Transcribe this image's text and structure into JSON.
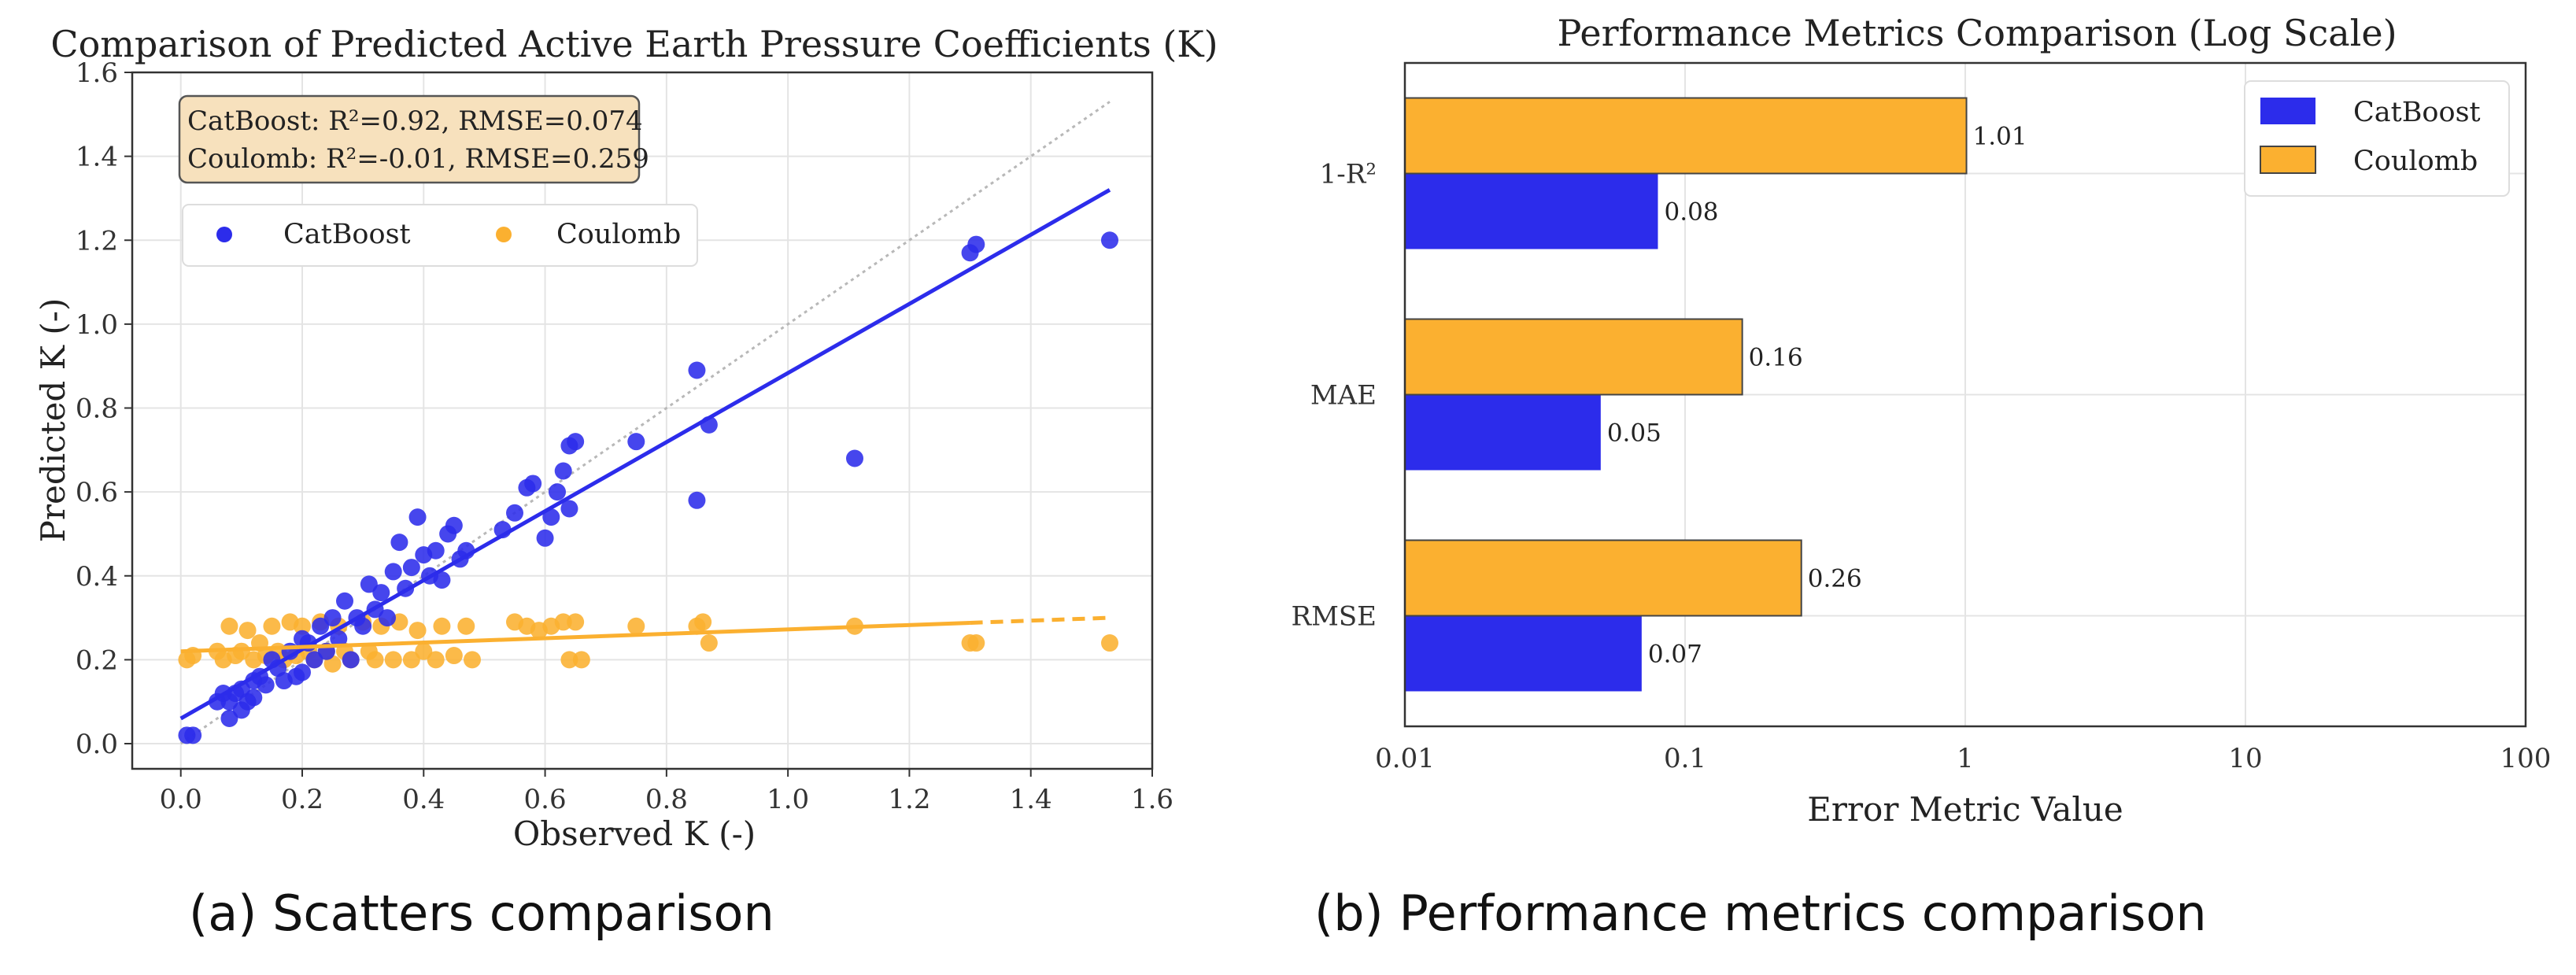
{
  "colors": {
    "catboost": "#2c2ceb",
    "coulomb": "#fbb030",
    "ideal_line": "#b8b8b8",
    "stat_box_fill": "#f7e1bd",
    "bar_edge": "#444444"
  },
  "captions": {
    "a": "(a) Scatters comparison",
    "b": "(b) Performance metrics comparison"
  },
  "chart_data": [
    {
      "type": "scatter",
      "title": "Comparison of Predicted Active Earth Pressure Coefficients (K)",
      "xlabel": "Observed K (-)",
      "ylabel": "Predicted K (-)",
      "xlim": [
        -0.08,
        1.6
      ],
      "ylim": [
        -0.06,
        1.6
      ],
      "xticks": [
        "0.0",
        "0.2",
        "0.4",
        "0.6",
        "0.8",
        "1.0",
        "1.2",
        "1.4",
        "1.6"
      ],
      "yticks": [
        "0.0",
        "0.2",
        "0.4",
        "0.6",
        "0.8",
        "1.0",
        "1.2",
        "1.4",
        "1.6"
      ],
      "grid": true,
      "legend": {
        "position": "upper-left",
        "entries": [
          "CatBoost",
          "Coulomb"
        ]
      },
      "annotation_lines": [
        "CatBoost: R²=0.92, RMSE=0.074",
        "Coulomb: R²=-0.01, RMSE=0.259"
      ],
      "ideal_line": {
        "x": [
          0.0,
          1.53
        ],
        "y": [
          0.0,
          1.53
        ]
      },
      "series": [
        {
          "name": "CatBoost",
          "fit": {
            "x": [
              0.0,
              1.53
            ],
            "y": [
              0.06,
              1.32
            ]
          },
          "points": [
            [
              0.01,
              0.02
            ],
            [
              0.02,
              0.02
            ],
            [
              0.06,
              0.1
            ],
            [
              0.07,
              0.12
            ],
            [
              0.08,
              0.06
            ],
            [
              0.08,
              0.1
            ],
            [
              0.09,
              0.12
            ],
            [
              0.1,
              0.08
            ],
            [
              0.1,
              0.13
            ],
            [
              0.11,
              0.1
            ],
            [
              0.12,
              0.15
            ],
            [
              0.12,
              0.11
            ],
            [
              0.13,
              0.16
            ],
            [
              0.14,
              0.14
            ],
            [
              0.15,
              0.2
            ],
            [
              0.16,
              0.18
            ],
            [
              0.17,
              0.15
            ],
            [
              0.18,
              0.22
            ],
            [
              0.19,
              0.16
            ],
            [
              0.2,
              0.25
            ],
            [
              0.2,
              0.17
            ],
            [
              0.21,
              0.24
            ],
            [
              0.22,
              0.2
            ],
            [
              0.23,
              0.28
            ],
            [
              0.24,
              0.22
            ],
            [
              0.25,
              0.3
            ],
            [
              0.26,
              0.25
            ],
            [
              0.27,
              0.34
            ],
            [
              0.28,
              0.2
            ],
            [
              0.29,
              0.3
            ],
            [
              0.3,
              0.28
            ],
            [
              0.31,
              0.38
            ],
            [
              0.32,
              0.32
            ],
            [
              0.33,
              0.36
            ],
            [
              0.34,
              0.3
            ],
            [
              0.35,
              0.41
            ],
            [
              0.36,
              0.48
            ],
            [
              0.37,
              0.37
            ],
            [
              0.38,
              0.42
            ],
            [
              0.39,
              0.54
            ],
            [
              0.4,
              0.45
            ],
            [
              0.41,
              0.4
            ],
            [
              0.42,
              0.46
            ],
            [
              0.43,
              0.39
            ],
            [
              0.44,
              0.5
            ],
            [
              0.45,
              0.52
            ],
            [
              0.46,
              0.44
            ],
            [
              0.47,
              0.46
            ],
            [
              0.53,
              0.51
            ],
            [
              0.55,
              0.55
            ],
            [
              0.57,
              0.61
            ],
            [
              0.58,
              0.62
            ],
            [
              0.6,
              0.49
            ],
            [
              0.61,
              0.54
            ],
            [
              0.62,
              0.6
            ],
            [
              0.63,
              0.65
            ],
            [
              0.64,
              0.71
            ],
            [
              0.65,
              0.72
            ],
            [
              0.64,
              0.56
            ],
            [
              0.75,
              0.72
            ],
            [
              0.85,
              0.89
            ],
            [
              0.85,
              0.58
            ],
            [
              0.87,
              0.76
            ],
            [
              1.11,
              0.68
            ],
            [
              1.3,
              1.17
            ],
            [
              1.31,
              1.19
            ],
            [
              1.53,
              1.2
            ]
          ]
        },
        {
          "name": "Coulomb",
          "fit": {
            "x": [
              0.0,
              1.53
            ],
            "y": [
              0.22,
              0.3
            ]
          },
          "points": [
            [
              0.01,
              0.2
            ],
            [
              0.02,
              0.21
            ],
            [
              0.06,
              0.22
            ],
            [
              0.07,
              0.2
            ],
            [
              0.08,
              0.28
            ],
            [
              0.09,
              0.21
            ],
            [
              0.1,
              0.22
            ],
            [
              0.11,
              0.27
            ],
            [
              0.12,
              0.2
            ],
            [
              0.13,
              0.24
            ],
            [
              0.14,
              0.21
            ],
            [
              0.15,
              0.28
            ],
            [
              0.16,
              0.22
            ],
            [
              0.17,
              0.2
            ],
            [
              0.18,
              0.29
            ],
            [
              0.19,
              0.21
            ],
            [
              0.2,
              0.28
            ],
            [
              0.21,
              0.22
            ],
            [
              0.22,
              0.2
            ],
            [
              0.23,
              0.29
            ],
            [
              0.24,
              0.22
            ],
            [
              0.25,
              0.19
            ],
            [
              0.26,
              0.28
            ],
            [
              0.27,
              0.22
            ],
            [
              0.28,
              0.2
            ],
            [
              0.3,
              0.29
            ],
            [
              0.31,
              0.22
            ],
            [
              0.32,
              0.2
            ],
            [
              0.33,
              0.28
            ],
            [
              0.35,
              0.2
            ],
            [
              0.36,
              0.29
            ],
            [
              0.38,
              0.2
            ],
            [
              0.39,
              0.27
            ],
            [
              0.4,
              0.22
            ],
            [
              0.42,
              0.2
            ],
            [
              0.43,
              0.28
            ],
            [
              0.45,
              0.21
            ],
            [
              0.47,
              0.28
            ],
            [
              0.48,
              0.2
            ],
            [
              0.55,
              0.29
            ],
            [
              0.57,
              0.28
            ],
            [
              0.59,
              0.27
            ],
            [
              0.61,
              0.28
            ],
            [
              0.63,
              0.29
            ],
            [
              0.64,
              0.2
            ],
            [
              0.65,
              0.29
            ],
            [
              0.66,
              0.2
            ],
            [
              0.75,
              0.28
            ],
            [
              0.85,
              0.28
            ],
            [
              0.86,
              0.29
            ],
            [
              0.87,
              0.24
            ],
            [
              1.11,
              0.28
            ],
            [
              1.3,
              0.24
            ],
            [
              1.31,
              0.24
            ],
            [
              1.53,
              0.24
            ]
          ]
        }
      ]
    },
    {
      "type": "bar",
      "orientation": "horizontal",
      "title": "Performance Metrics Comparison (Log Scale)",
      "xlabel": "Error Metric Value",
      "ylabel": "",
      "xscale": "log",
      "xlim": [
        0.01,
        100
      ],
      "xticks": [
        "0.01",
        "0.1",
        "1",
        "10",
        "100"
      ],
      "grid": true,
      "legend": {
        "position": "upper-right",
        "entries": [
          "CatBoost",
          "Coulomb"
        ]
      },
      "categories": [
        "1-R²",
        "MAE",
        "RMSE"
      ],
      "series": [
        {
          "name": "CatBoost",
          "values": [
            0.08,
            0.05,
            0.07
          ],
          "labels": [
            "0.08",
            "0.05",
            "0.07"
          ]
        },
        {
          "name": "Coulomb",
          "values": [
            1.01,
            0.16,
            0.26
          ],
          "labels": [
            "1.01",
            "0.16",
            "0.26"
          ]
        }
      ]
    }
  ]
}
